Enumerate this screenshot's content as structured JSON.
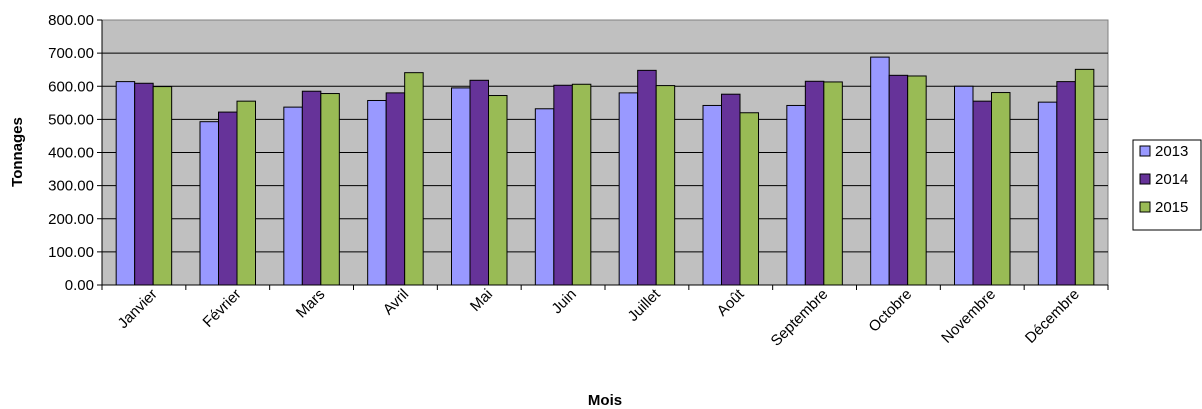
{
  "chart_data": {
    "type": "bar",
    "title": "",
    "xlabel": "Mois",
    "ylabel": "Tonnages",
    "ylim": [
      0,
      800
    ],
    "yticks": [
      "0.00",
      "100.00",
      "200.00",
      "300.00",
      "400.00",
      "500.00",
      "600.00",
      "700.00",
      "800.00"
    ],
    "grid": true,
    "legend": "right",
    "categories": [
      "Janvier",
      "Février",
      "Mars",
      "Avril",
      "Mai",
      "Juin",
      "Juillet",
      "Août",
      "Septembre",
      "Octobre",
      "Novembre",
      "Décembre"
    ],
    "series": [
      {
        "name": "2013",
        "color": "#9999ff",
        "values": [
          614,
          493,
          537,
          557,
          595,
          532,
          580,
          542,
          542,
          688,
          600,
          552
        ]
      },
      {
        "name": "2014",
        "color": "#663399",
        "values": [
          609,
          522,
          585,
          580,
          618,
          603,
          648,
          576,
          615,
          633,
          555,
          614
        ]
      },
      {
        "name": "2015",
        "color": "#99bb55",
        "values": [
          599,
          555,
          578,
          641,
          572,
          606,
          602,
          520,
          613,
          631,
          581,
          651
        ]
      }
    ]
  }
}
